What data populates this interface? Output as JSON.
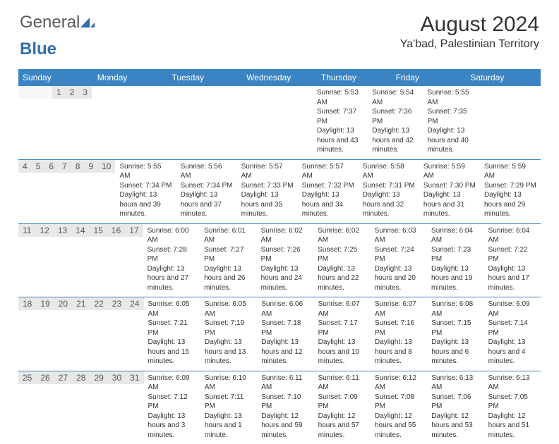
{
  "logo": {
    "text_general": "General",
    "text_blue": "Blue"
  },
  "header": {
    "month_title": "August 2024",
    "location": "Ya'bad, Palestinian Territory"
  },
  "colors": {
    "header_bg": "#3b84c4",
    "daynum_bg": "#e8e8e8",
    "border": "#3b84c4",
    "logo_gray": "#58595b",
    "logo_blue": "#2f6fb0"
  },
  "day_names": [
    "Sunday",
    "Monday",
    "Tuesday",
    "Wednesday",
    "Thursday",
    "Friday",
    "Saturday"
  ],
  "weeks": [
    {
      "nums": [
        "",
        "",
        "",
        "",
        "1",
        "2",
        "3"
      ],
      "cells": [
        {
          "sunrise": "",
          "sunset": "",
          "daylight": ""
        },
        {
          "sunrise": "",
          "sunset": "",
          "daylight": ""
        },
        {
          "sunrise": "",
          "sunset": "",
          "daylight": ""
        },
        {
          "sunrise": "",
          "sunset": "",
          "daylight": ""
        },
        {
          "sunrise": "Sunrise: 5:53 AM",
          "sunset": "Sunset: 7:37 PM",
          "daylight": "Daylight: 13 hours and 43 minutes."
        },
        {
          "sunrise": "Sunrise: 5:54 AM",
          "sunset": "Sunset: 7:36 PM",
          "daylight": "Daylight: 13 hours and 42 minutes."
        },
        {
          "sunrise": "Sunrise: 5:55 AM",
          "sunset": "Sunset: 7:35 PM",
          "daylight": "Daylight: 13 hours and 40 minutes."
        }
      ]
    },
    {
      "nums": [
        "4",
        "5",
        "6",
        "7",
        "8",
        "9",
        "10"
      ],
      "cells": [
        {
          "sunrise": "Sunrise: 5:55 AM",
          "sunset": "Sunset: 7:34 PM",
          "daylight": "Daylight: 13 hours and 39 minutes."
        },
        {
          "sunrise": "Sunrise: 5:56 AM",
          "sunset": "Sunset: 7:34 PM",
          "daylight": "Daylight: 13 hours and 37 minutes."
        },
        {
          "sunrise": "Sunrise: 5:57 AM",
          "sunset": "Sunset: 7:33 PM",
          "daylight": "Daylight: 13 hours and 35 minutes."
        },
        {
          "sunrise": "Sunrise: 5:57 AM",
          "sunset": "Sunset: 7:32 PM",
          "daylight": "Daylight: 13 hours and 34 minutes."
        },
        {
          "sunrise": "Sunrise: 5:58 AM",
          "sunset": "Sunset: 7:31 PM",
          "daylight": "Daylight: 13 hours and 32 minutes."
        },
        {
          "sunrise": "Sunrise: 5:59 AM",
          "sunset": "Sunset: 7:30 PM",
          "daylight": "Daylight: 13 hours and 31 minutes."
        },
        {
          "sunrise": "Sunrise: 5:59 AM",
          "sunset": "Sunset: 7:29 PM",
          "daylight": "Daylight: 13 hours and 29 minutes."
        }
      ]
    },
    {
      "nums": [
        "11",
        "12",
        "13",
        "14",
        "15",
        "16",
        "17"
      ],
      "cells": [
        {
          "sunrise": "Sunrise: 6:00 AM",
          "sunset": "Sunset: 7:28 PM",
          "daylight": "Daylight: 13 hours and 27 minutes."
        },
        {
          "sunrise": "Sunrise: 6:01 AM",
          "sunset": "Sunset: 7:27 PM",
          "daylight": "Daylight: 13 hours and 26 minutes."
        },
        {
          "sunrise": "Sunrise: 6:02 AM",
          "sunset": "Sunset: 7:26 PM",
          "daylight": "Daylight: 13 hours and 24 minutes."
        },
        {
          "sunrise": "Sunrise: 6:02 AM",
          "sunset": "Sunset: 7:25 PM",
          "daylight": "Daylight: 13 hours and 22 minutes."
        },
        {
          "sunrise": "Sunrise: 6:03 AM",
          "sunset": "Sunset: 7:24 PM",
          "daylight": "Daylight: 13 hours and 20 minutes."
        },
        {
          "sunrise": "Sunrise: 6:04 AM",
          "sunset": "Sunset: 7:23 PM",
          "daylight": "Daylight: 13 hours and 19 minutes."
        },
        {
          "sunrise": "Sunrise: 6:04 AM",
          "sunset": "Sunset: 7:22 PM",
          "daylight": "Daylight: 13 hours and 17 minutes."
        }
      ]
    },
    {
      "nums": [
        "18",
        "19",
        "20",
        "21",
        "22",
        "23",
        "24"
      ],
      "cells": [
        {
          "sunrise": "Sunrise: 6:05 AM",
          "sunset": "Sunset: 7:21 PM",
          "daylight": "Daylight: 13 hours and 15 minutes."
        },
        {
          "sunrise": "Sunrise: 6:05 AM",
          "sunset": "Sunset: 7:19 PM",
          "daylight": "Daylight: 13 hours and 13 minutes."
        },
        {
          "sunrise": "Sunrise: 6:06 AM",
          "sunset": "Sunset: 7:18 PM",
          "daylight": "Daylight: 13 hours and 12 minutes."
        },
        {
          "sunrise": "Sunrise: 6:07 AM",
          "sunset": "Sunset: 7:17 PM",
          "daylight": "Daylight: 13 hours and 10 minutes."
        },
        {
          "sunrise": "Sunrise: 6:07 AM",
          "sunset": "Sunset: 7:16 PM",
          "daylight": "Daylight: 13 hours and 8 minutes."
        },
        {
          "sunrise": "Sunrise: 6:08 AM",
          "sunset": "Sunset: 7:15 PM",
          "daylight": "Daylight: 13 hours and 6 minutes."
        },
        {
          "sunrise": "Sunrise: 6:09 AM",
          "sunset": "Sunset: 7:14 PM",
          "daylight": "Daylight: 13 hours and 4 minutes."
        }
      ]
    },
    {
      "nums": [
        "25",
        "26",
        "27",
        "28",
        "29",
        "30",
        "31"
      ],
      "cells": [
        {
          "sunrise": "Sunrise: 6:09 AM",
          "sunset": "Sunset: 7:12 PM",
          "daylight": "Daylight: 13 hours and 3 minutes."
        },
        {
          "sunrise": "Sunrise: 6:10 AM",
          "sunset": "Sunset: 7:11 PM",
          "daylight": "Daylight: 13 hours and 1 minute."
        },
        {
          "sunrise": "Sunrise: 6:11 AM",
          "sunset": "Sunset: 7:10 PM",
          "daylight": "Daylight: 12 hours and 59 minutes."
        },
        {
          "sunrise": "Sunrise: 6:11 AM",
          "sunset": "Sunset: 7:09 PM",
          "daylight": "Daylight: 12 hours and 57 minutes."
        },
        {
          "sunrise": "Sunrise: 6:12 AM",
          "sunset": "Sunset: 7:08 PM",
          "daylight": "Daylight: 12 hours and 55 minutes."
        },
        {
          "sunrise": "Sunrise: 6:13 AM",
          "sunset": "Sunset: 7:06 PM",
          "daylight": "Daylight: 12 hours and 53 minutes."
        },
        {
          "sunrise": "Sunrise: 6:13 AM",
          "sunset": "Sunset: 7:05 PM",
          "daylight": "Daylight: 12 hours and 51 minutes."
        }
      ]
    }
  ]
}
